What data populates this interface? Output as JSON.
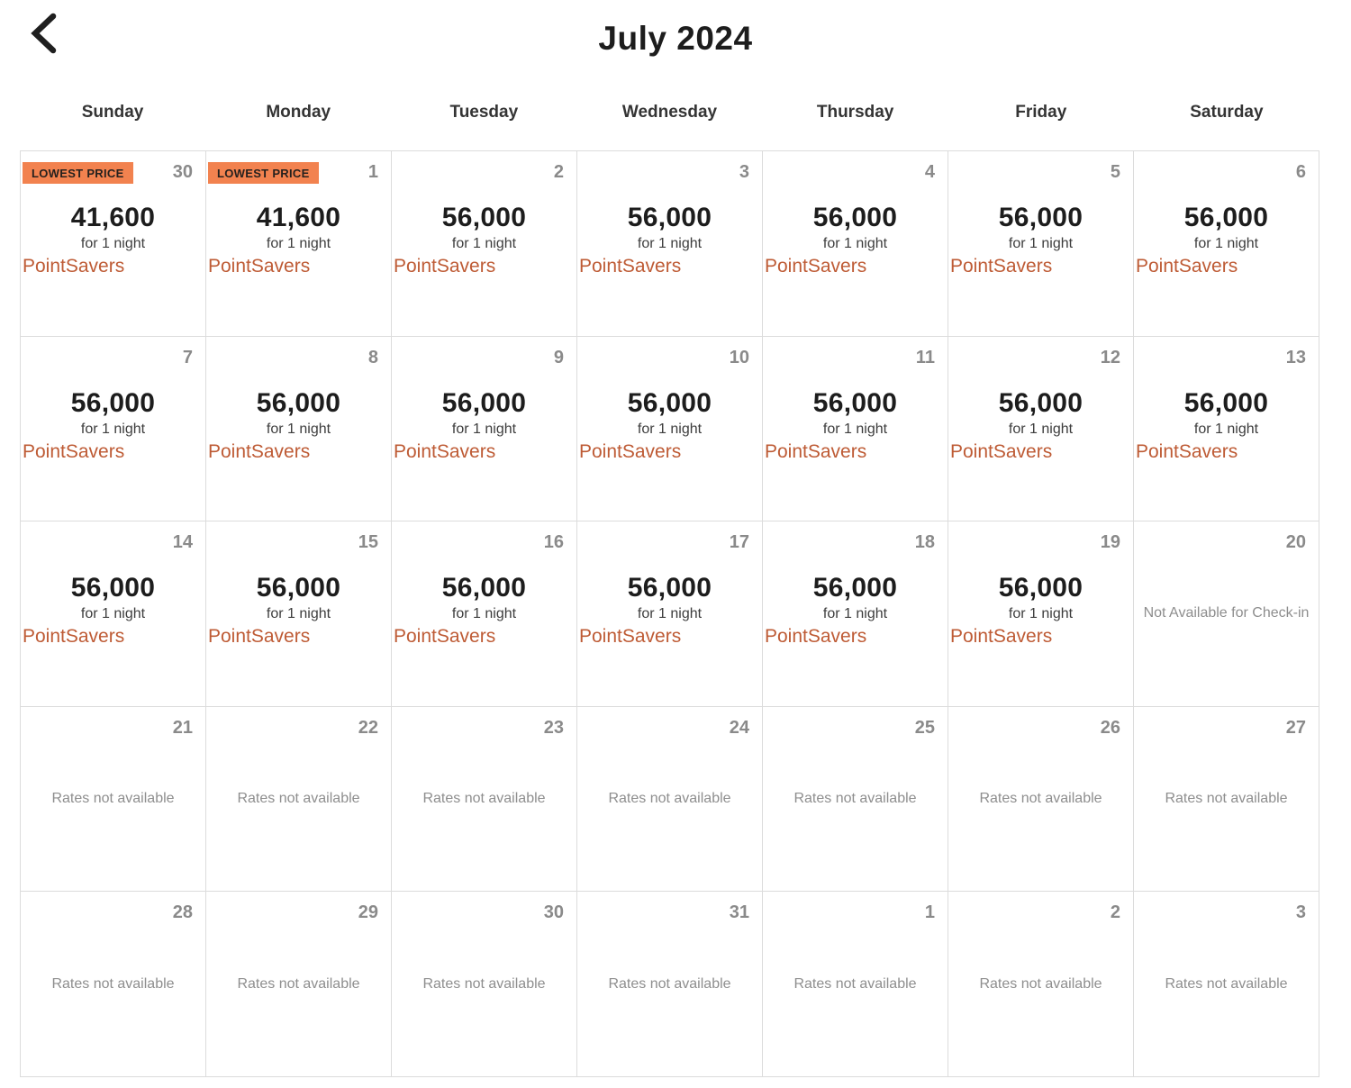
{
  "header": {
    "title": "July 2024",
    "back_icon": "chevron-left"
  },
  "weekdays": [
    "Sunday",
    "Monday",
    "Tuesday",
    "Wednesday",
    "Thursday",
    "Friday",
    "Saturday"
  ],
  "labels": {
    "lowest_price_badge": "LOWEST PRICE",
    "per_night": "for 1 night",
    "rate_program": "PointSavers",
    "not_available_checkin": "Not Available for Check-in",
    "rates_not_available": "Rates not available"
  },
  "colors": {
    "badge_bg": "#f2824f",
    "badge_text": "#26211e",
    "link_orange": "#be5b35",
    "muted_gray": "#8e8e8e",
    "grid_border": "#dcdcdc",
    "text_dark": "#1d1d1d"
  },
  "cells": [
    {
      "day": "30",
      "type": "rate",
      "badge": true,
      "points": "41,600"
    },
    {
      "day": "1",
      "type": "rate",
      "badge": true,
      "points": "41,600"
    },
    {
      "day": "2",
      "type": "rate",
      "badge": false,
      "points": "56,000"
    },
    {
      "day": "3",
      "type": "rate",
      "badge": false,
      "points": "56,000"
    },
    {
      "day": "4",
      "type": "rate",
      "badge": false,
      "points": "56,000"
    },
    {
      "day": "5",
      "type": "rate",
      "badge": false,
      "points": "56,000"
    },
    {
      "day": "6",
      "type": "rate",
      "badge": false,
      "points": "56,000"
    },
    {
      "day": "7",
      "type": "rate",
      "badge": false,
      "points": "56,000"
    },
    {
      "day": "8",
      "type": "rate",
      "badge": false,
      "points": "56,000"
    },
    {
      "day": "9",
      "type": "rate",
      "badge": false,
      "points": "56,000"
    },
    {
      "day": "10",
      "type": "rate",
      "badge": false,
      "points": "56,000"
    },
    {
      "day": "11",
      "type": "rate",
      "badge": false,
      "points": "56,000"
    },
    {
      "day": "12",
      "type": "rate",
      "badge": false,
      "points": "56,000"
    },
    {
      "day": "13",
      "type": "rate",
      "badge": false,
      "points": "56,000"
    },
    {
      "day": "14",
      "type": "rate",
      "badge": false,
      "points": "56,000"
    },
    {
      "day": "15",
      "type": "rate",
      "badge": false,
      "points": "56,000"
    },
    {
      "day": "16",
      "type": "rate",
      "badge": false,
      "points": "56,000"
    },
    {
      "day": "17",
      "type": "rate",
      "badge": false,
      "points": "56,000"
    },
    {
      "day": "18",
      "type": "rate",
      "badge": false,
      "points": "56,000"
    },
    {
      "day": "19",
      "type": "rate",
      "badge": false,
      "points": "56,000"
    },
    {
      "day": "20",
      "type": "no_checkin"
    },
    {
      "day": "21",
      "type": "no_rates"
    },
    {
      "day": "22",
      "type": "no_rates"
    },
    {
      "day": "23",
      "type": "no_rates"
    },
    {
      "day": "24",
      "type": "no_rates"
    },
    {
      "day": "25",
      "type": "no_rates"
    },
    {
      "day": "26",
      "type": "no_rates"
    },
    {
      "day": "27",
      "type": "no_rates"
    },
    {
      "day": "28",
      "type": "no_rates"
    },
    {
      "day": "29",
      "type": "no_rates"
    },
    {
      "day": "30",
      "type": "no_rates"
    },
    {
      "day": "31",
      "type": "no_rates"
    },
    {
      "day": "1",
      "type": "no_rates"
    },
    {
      "day": "2",
      "type": "no_rates"
    },
    {
      "day": "3",
      "type": "no_rates"
    }
  ]
}
